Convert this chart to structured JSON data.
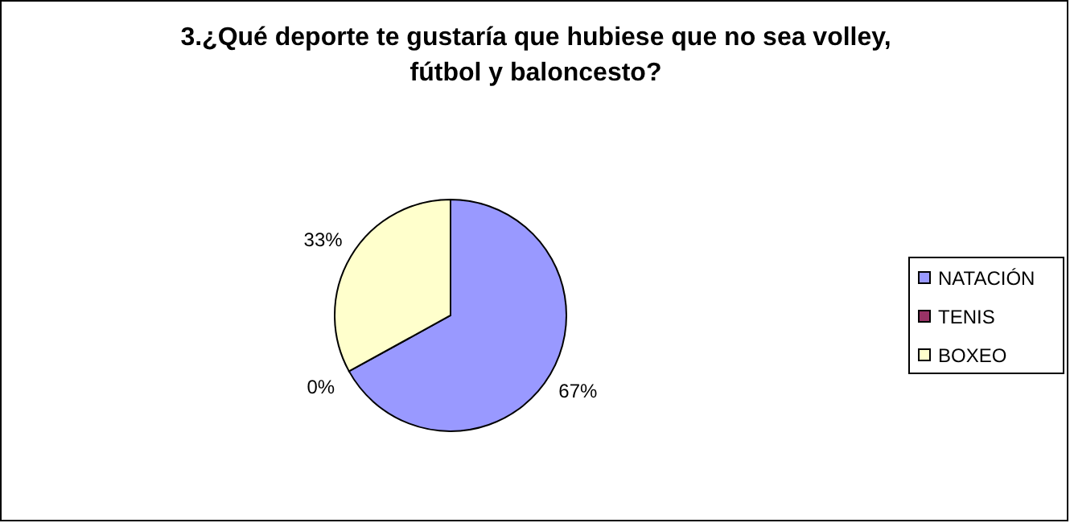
{
  "chart_data": {
    "type": "pie",
    "title": "3.¿Qué deporte te gustaría que hubiese que no sea volley, fútbol y baloncesto?",
    "categories": [
      "NATACIÓN",
      "TENIS",
      "BOXEO"
    ],
    "values": [
      67,
      0,
      33
    ],
    "value_labels": [
      "67%",
      "0%",
      "33%"
    ],
    "colors": [
      "#9999ff",
      "#993366",
      "#ffffcc"
    ],
    "legend": "right"
  }
}
